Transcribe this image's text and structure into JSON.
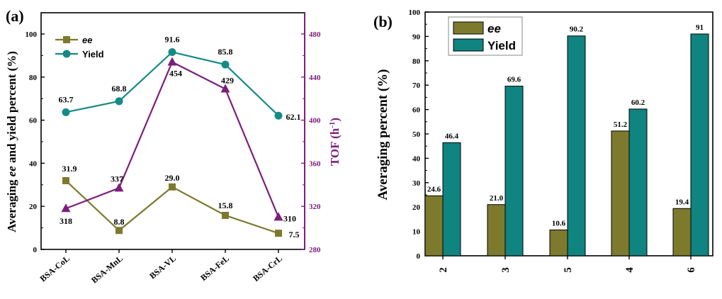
{
  "chart_data": [
    {
      "panel": "(a)",
      "type": "line",
      "categories": [
        "BSA-CoL",
        "BSA-MnL",
        "BSA-VL",
        "BSA-FeL",
        "BSA-CrL"
      ],
      "ylabel": "Averaging ee and yield percent (%)",
      "ylim": [
        0,
        100
      ],
      "yticks": [
        "0",
        "20",
        "40",
        "60",
        "80",
        "100"
      ],
      "y2label": "TOF (h⁻¹)",
      "y2lim": [
        280,
        480
      ],
      "y2ticks": [
        "280",
        "320",
        "360",
        "400",
        "440",
        "480"
      ],
      "legend_position": "top-left",
      "series": [
        {
          "name": "ee",
          "axis": "left",
          "color": "#7d7a2e",
          "marker": "square",
          "values": [
            31.9,
            8.8,
            29.0,
            15.8,
            7.5
          ],
          "labels": [
            "31.9",
            "8.8",
            "29.0",
            "15.8",
            "7.5"
          ]
        },
        {
          "name": "Yield",
          "axis": "left",
          "color": "#168a86",
          "marker": "circle",
          "values": [
            63.7,
            68.8,
            91.6,
            85.8,
            62.1
          ],
          "labels": [
            "63.7",
            "68.8",
            "91.6",
            "85.8",
            "62.1"
          ]
        },
        {
          "axis": "right",
          "color": "#7b1f7a",
          "marker": "triangle",
          "values": [
            318,
            337,
            454,
            429,
            310
          ],
          "labels": [
            "318",
            "337",
            "454",
            "429",
            "310"
          ]
        }
      ]
    },
    {
      "panel": "(b)",
      "type": "bar",
      "categories": [
        "2",
        "3",
        "5",
        "4",
        "6"
      ],
      "ylabel": "Averaging percent (%)",
      "ylim": [
        0,
        100
      ],
      "yticks": [
        "0",
        "10",
        "20",
        "30",
        "40",
        "50",
        "60",
        "70",
        "80",
        "90",
        "100"
      ],
      "legend_position": "top-left",
      "series": [
        {
          "name": "ee",
          "color": "#7d7a2e",
          "values": [
            24.6,
            21.0,
            10.6,
            51.2,
            19.4
          ],
          "labels": [
            "24.6",
            "21.0",
            "10.6",
            "51.2",
            "19.4"
          ]
        },
        {
          "name": "Yield",
          "color": "#0f8480",
          "values": [
            46.4,
            69.6,
            90.2,
            60.2,
            91
          ],
          "labels": [
            "46.4",
            "69.6",
            "90.2",
            "60.2",
            "91"
          ]
        }
      ]
    }
  ]
}
